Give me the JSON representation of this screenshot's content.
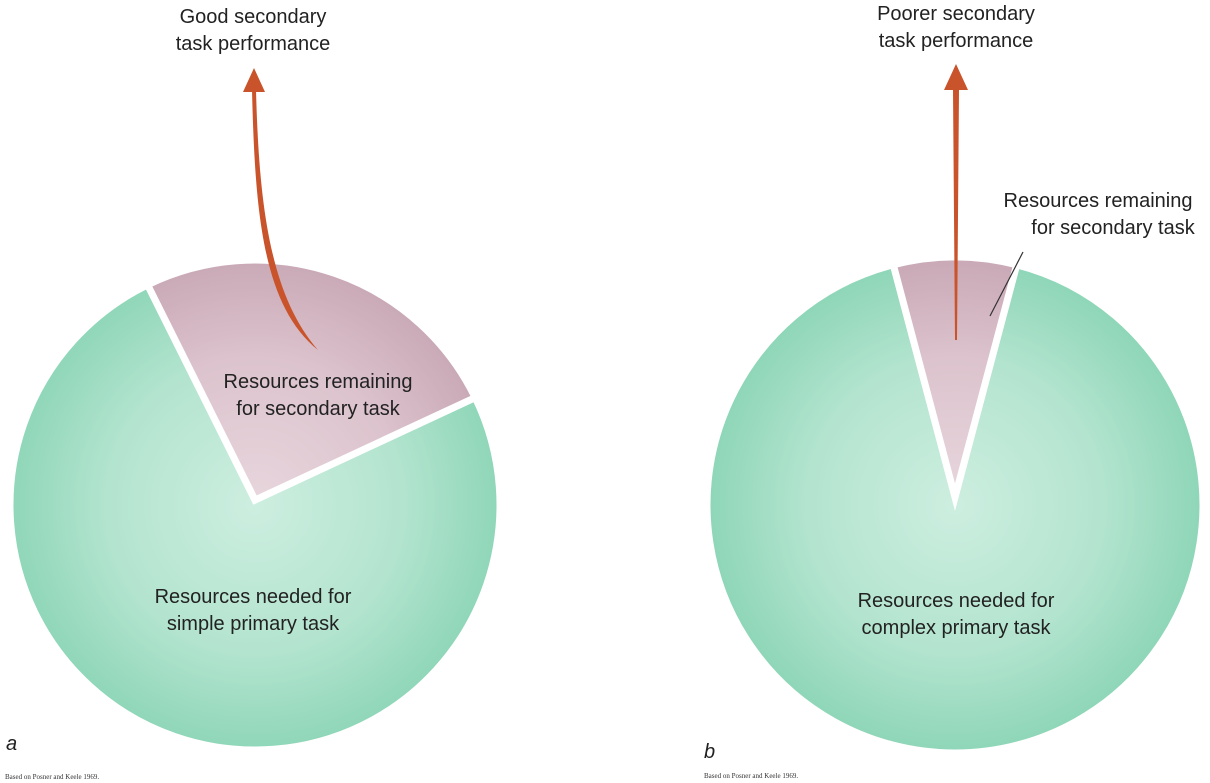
{
  "panel_a": {
    "letter": "a",
    "arrow_label_line1": "Good secondary",
    "arrow_label_line2": "task performance",
    "secondary_label_line1": "Resources remaining",
    "secondary_label_line2": "for secondary task",
    "primary_label_line1": "Resources needed for",
    "primary_label_line2": "simple primary task",
    "credit": "Based on Posner and Keele 1969.",
    "secondary_share": 0.25
  },
  "panel_b": {
    "letter": "b",
    "arrow_label_line1": "Poorer secondary",
    "arrow_label_line2": "task performance",
    "secondary_label_line1": "Resources remaining",
    "secondary_label_line2": "for secondary task",
    "primary_label_line1": "Resources needed for",
    "primary_label_line2": "complex primary task",
    "credit": "Based on Posner and Keele 1969.",
    "secondary_share": 0.08
  },
  "colors": {
    "primary_fill": "#8fd6b8",
    "secondary_fill": "#c9a9b6",
    "arrow": "#c9532a"
  }
}
